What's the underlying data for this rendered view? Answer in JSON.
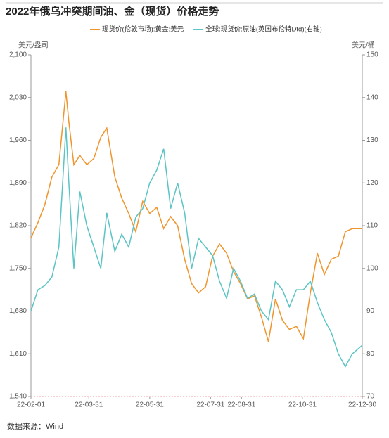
{
  "chart_data": {
    "type": "line",
    "title": "2022年俄乌冲突期间油、金（现货）价格走势",
    "y_label": "美元/盎司",
    "y2_label": "美元/桶",
    "source": "数据来源：Wind",
    "x": [
      "22-02-01",
      "22-02-08",
      "22-02-15",
      "22-02-22",
      "22-03-01",
      "22-03-08",
      "22-03-11",
      "22-03-16",
      "22-03-22",
      "22-03-29",
      "22-04-05",
      "22-04-12",
      "22-04-18",
      "22-04-26",
      "22-05-03",
      "22-05-10",
      "22-05-17",
      "22-05-24",
      "22-05-31",
      "22-06-07",
      "22-06-14",
      "22-06-21",
      "22-06-28",
      "22-07-05",
      "22-07-12",
      "22-07-19",
      "22-07-26",
      "22-08-02",
      "22-08-09",
      "22-08-16",
      "22-08-23",
      "22-08-30",
      "22-09-06",
      "22-09-13",
      "22-09-20",
      "22-09-27",
      "22-10-04",
      "22-10-11",
      "22-10-18",
      "22-10-25",
      "22-11-01",
      "22-11-08",
      "22-11-15",
      "22-11-22",
      "22-11-29",
      "22-12-06",
      "22-12-13",
      "22-12-20",
      "22-12-30"
    ],
    "series": [
      {
        "name": "现货价(伦敦市场):黄金:美元",
        "color": "#f0952c",
        "axis": "y",
        "values": [
          1800,
          1825,
          1855,
          1900,
          1920,
          2040,
          1990,
          1920,
          1935,
          1920,
          1930,
          1965,
          1980,
          1900,
          1865,
          1840,
          1810,
          1860,
          1840,
          1850,
          1815,
          1835,
          1820,
          1765,
          1725,
          1710,
          1720,
          1770,
          1790,
          1775,
          1745,
          1725,
          1700,
          1705,
          1670,
          1630,
          1700,
          1665,
          1650,
          1655,
          1635,
          1710,
          1775,
          1740,
          1765,
          1770,
          1810,
          1815,
          1815
        ]
      },
      {
        "name": "全球:现货价:原油(英国布伦特Dtd)(右轴)",
        "color": "#5bc4c4",
        "axis": "y2",
        "values": [
          90,
          95,
          96,
          98,
          105,
          133,
          120,
          100,
          118,
          110,
          105,
          100,
          113,
          104,
          108,
          105,
          112,
          114,
          120,
          123,
          128,
          114,
          120,
          113,
          100,
          107,
          105,
          103,
          97,
          93,
          100,
          97,
          93,
          94,
          90,
          88,
          97,
          95,
          91,
          95,
          95,
          97,
          92,
          88,
          85,
          80,
          77,
          80,
          82
        ]
      }
    ],
    "xlim": [
      "22-02-01",
      "22-12-30"
    ],
    "xticks": [
      "22-02-01",
      "22-03-31",
      "22-05-31",
      "22-07-31",
      "22-08-31",
      "22-10-31",
      "22-12-30"
    ],
    "ylim": [
      1540,
      2100
    ],
    "yticks": [
      {
        "value": 1540,
        "label": "1,540"
      },
      {
        "value": 1610,
        "label": "1,610"
      },
      {
        "value": 1680,
        "label": "1,680"
      },
      {
        "value": 1750,
        "label": "1,750"
      },
      {
        "value": 1820,
        "label": "1,820"
      },
      {
        "value": 1890,
        "label": "1,890"
      },
      {
        "value": 1960,
        "label": "1,960"
      },
      {
        "value": 2030,
        "label": "2,030"
      },
      {
        "value": 2100,
        "label": "2,100"
      }
    ],
    "y2lim": [
      70,
      150
    ],
    "y2ticks": [
      70,
      80,
      90,
      100,
      110,
      120,
      130,
      140,
      150
    ]
  }
}
